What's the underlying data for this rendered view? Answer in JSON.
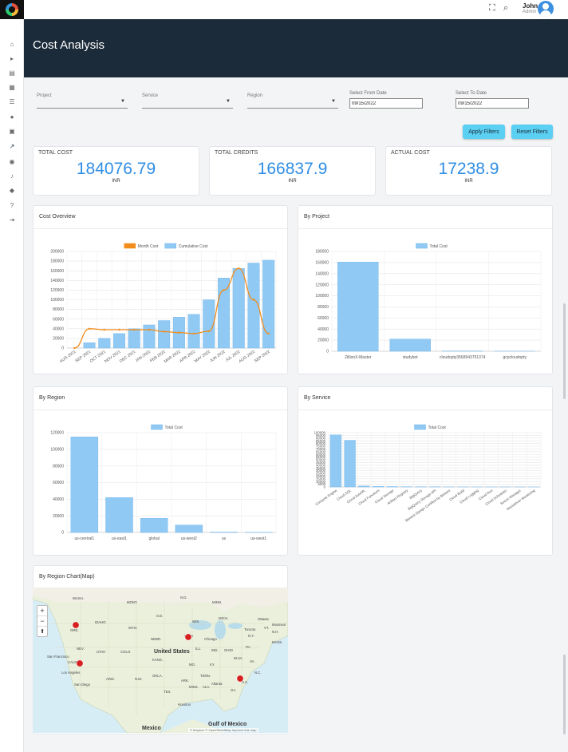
{
  "header": {
    "page_title": "Cost Analysis",
    "user_name": "John",
    "user_role": "Admin"
  },
  "filters": {
    "project_label": "Project",
    "service_label": "Service",
    "region_label": "Region",
    "from_label": "Select From Date",
    "from_value": "09/15/2022",
    "to_label": "Select To Date",
    "to_value": "09/15/2022",
    "apply_label": "Apply Filters",
    "reset_label": "Reset Filters"
  },
  "kpis": [
    {
      "title": "TOTAL COST",
      "value": "184076.79",
      "unit": "INR"
    },
    {
      "title": "TOTAL CREDITS",
      "value": "166837.9",
      "unit": "INR"
    },
    {
      "title": "ACTUAL COST",
      "value": "17238.9",
      "unit": "INR"
    }
  ],
  "cards": {
    "cost_overview": "Cost Overview",
    "by_project": "By Project",
    "by_region": "By Region",
    "by_service": "By Service",
    "by_region_map": "By Region Chart(Map)"
  },
  "chart_data": [
    {
      "type": "bar",
      "id": "cost-overview",
      "title": "Cost Overview",
      "categories": [
        "AUG 2021",
        "SEP 2021",
        "OCT 2021",
        "NOV 2021",
        "DEC 2021",
        "JAN 2022",
        "FEB 2022",
        "MAR 2022",
        "APR 2022",
        "MAY 2022",
        "JUN 2022",
        "JUL 2022",
        "AUG 2022",
        "SEP 2022"
      ],
      "series": [
        {
          "name": "Month Cost",
          "type": "line",
          "color": "#f28c1b",
          "values": [
            0,
            40000,
            38000,
            38000,
            38000,
            38000,
            34000,
            32000,
            30000,
            35000,
            120000,
            165000,
            100000,
            30000
          ]
        },
        {
          "name": "Cumulative Cost",
          "type": "bar",
          "color": "#90c9f3",
          "values": [
            0,
            11000,
            20000,
            30000,
            40000,
            48000,
            57000,
            64000,
            70000,
            100000,
            145000,
            165000,
            176000,
            182000
          ]
        }
      ],
      "yticks": [
        "0",
        "20000",
        "40000",
        "60000",
        "80000",
        "100000",
        "120000",
        "140000",
        "160000",
        "180000",
        "200000"
      ],
      "ylim": [
        0,
        200000
      ],
      "legend": "top"
    },
    {
      "type": "bar",
      "id": "by-project",
      "title": "By Project",
      "categories": [
        "ZillionX-Master",
        "studybot",
        "cloudopty3568943751374",
        "gcpcloudopty"
      ],
      "series": [
        {
          "name": "Total Cost",
          "color": "#90c9f3",
          "values": [
            161000,
            22000,
            500,
            200
          ]
        }
      ],
      "yticks": [
        "0",
        "20000",
        "40000",
        "60000",
        "80000",
        "100000",
        "120000",
        "140000",
        "160000",
        "180000"
      ],
      "ylim": [
        0,
        180000
      ],
      "legend": "top"
    },
    {
      "type": "bar",
      "id": "by-region",
      "title": "By Region",
      "categories": [
        "us-central1",
        "us-east1",
        "global",
        "us-west2",
        "us",
        "us-west1"
      ],
      "series": [
        {
          "name": "Total Cost",
          "color": "#90c9f3",
          "values": [
            115000,
            42000,
            17000,
            9000,
            500,
            200
          ]
        }
      ],
      "yticks": [
        "0",
        "20000",
        "40000",
        "60000",
        "80000",
        "100000",
        "120000"
      ],
      "ylim": [
        0,
        120000
      ],
      "legend": "top"
    },
    {
      "type": "bar",
      "id": "by-service",
      "title": "By Service",
      "categories": [
        "Compute Engine",
        "Cloud SQL",
        "Cloud AutoML",
        "Cloud Functions",
        "Cloud Storage",
        "Artifact Registry",
        "BigQuery",
        "BigQuery Storage API",
        "Bitnami Django Certified by Bitnami",
        "Cloud Build",
        "Cloud Logging",
        "Cloud Run",
        "Cloud Scheduler",
        "Secret Manager",
        "Stackdriver Monitoring"
      ],
      "series": [
        {
          "name": "Total Cost",
          "color": "#90c9f3",
          "values": [
            96000,
            86000,
            2000,
            1000,
            800,
            500,
            400,
            300,
            200,
            200,
            100,
            100,
            100,
            100,
            100
          ]
        }
      ],
      "yticks": [
        "0",
        "5000",
        "10000",
        "15000",
        "20000",
        "25000",
        "30000",
        "35000",
        "40000",
        "45000",
        "50000",
        "55000",
        "60000",
        "65000",
        "70000",
        "75000",
        "80000",
        "85000",
        "90000",
        "95000",
        "100000"
      ],
      "ylim": [
        0,
        100000
      ],
      "legend": "top"
    }
  ],
  "map": {
    "place_labels": [
      "WASH.",
      "MONT.",
      "N.D.",
      "MINN.",
      "IDAHO",
      "S.D.",
      "WIS.",
      "MICH.",
      "Ottawa",
      "Montreal",
      "ORE.",
      "WYO.",
      "Toronto",
      "VT.",
      "N.H.",
      "NEBR.",
      "IOWA",
      "Chicago",
      "N.Y.",
      "MASS.",
      "NEV.",
      "UTAH",
      "COLO.",
      "ILL.",
      "IND.",
      "OHIO",
      "PA.",
      "San Francisco",
      "CALIF.",
      "KANS.",
      "United States",
      "MO.",
      "W.VA.",
      "VA.",
      "KY.",
      "OKLA.",
      "N.C.",
      "ARIZ.",
      "N.M.",
      "ARK.",
      "TENN.",
      "S.C.",
      "Los Angeles",
      "San Diego",
      "Atlanta",
      "TEX.",
      "MISS.",
      "ALA.",
      "GA.",
      "Houston",
      "Gulf of Mexico",
      "Mexico"
    ],
    "attribution": "© Mapbox © OpenStreetMap Improve this map",
    "markers": [
      "us-west1",
      "us-west2",
      "us-central1",
      "us-east1"
    ]
  }
}
